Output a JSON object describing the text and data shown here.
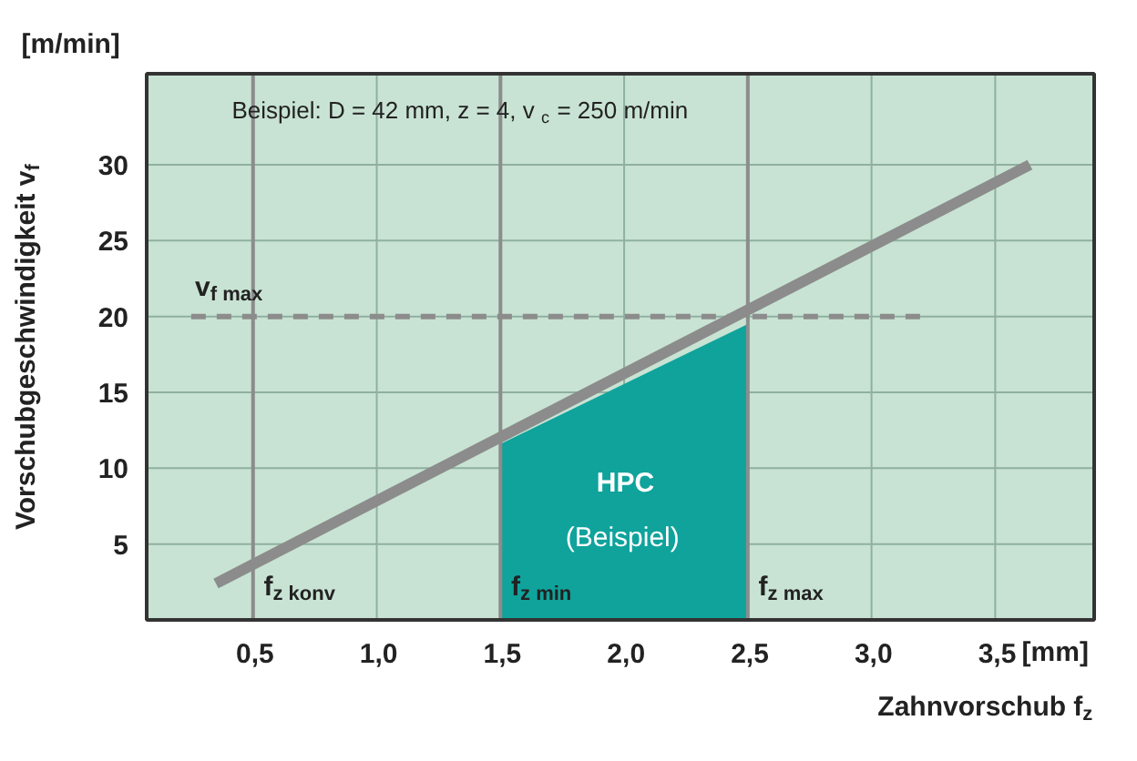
{
  "chart_data": {
    "type": "line",
    "xlabel": "Zahnvorschub f$_{z}$",
    "ylabel": "Vorschubgeschwindigkeit v$_{f}$",
    "xlim": [
      0.07,
      3.9
    ],
    "ylim": [
      0,
      36
    ],
    "xticks": [
      {
        "value": 0.5,
        "label": "0,5"
      },
      {
        "value": 1.0,
        "label": "1,0"
      },
      {
        "value": 1.5,
        "label": "1,5"
      },
      {
        "value": 2.0,
        "label": "2,0"
      },
      {
        "value": 2.5,
        "label": "2,5"
      },
      {
        "value": 3.0,
        "label": "3,0"
      },
      {
        "value": 3.5,
        "label": "3,5"
      }
    ],
    "yticks": [
      5,
      10,
      15,
      20,
      25,
      30
    ],
    "grid": true,
    "series": [
      {
        "type": "area",
        "color": "#0fa39c",
        "x": [
          1.5,
          2.5
        ],
        "values": [
          11.6,
          19.5
        ]
      },
      {
        "color": "#8c8c8c",
        "x": [
          0.35,
          3.64
        ],
        "values": [
          2.4,
          30
        ]
      },
      {
        "name": "v$_{f max}$",
        "color": "#8c8c8c",
        "line_style": "dashed",
        "x": [
          0.25,
          3.2
        ],
        "values": [
          20,
          20
        ]
      }
    ],
    "ref_lines": [
      {
        "axis": "x",
        "value": 0.5,
        "label": "f$_{z konv}$",
        "color": "#8c8c8c"
      },
      {
        "axis": "x",
        "value": 1.5,
        "label": "f$_{z min}$",
        "color": "#8c8c8c"
      },
      {
        "axis": "x",
        "value": 2.5,
        "label": "f$_{z max}$",
        "color": "#8c8c8c"
      }
    ],
    "annotations": [
      "[m/min]",
      "[mm]",
      "Beispiel: D = 42 mm, z = 4,  v$_{c}$ = 250 m/min",
      "HPC",
      "(Beispiel)"
    ]
  }
}
